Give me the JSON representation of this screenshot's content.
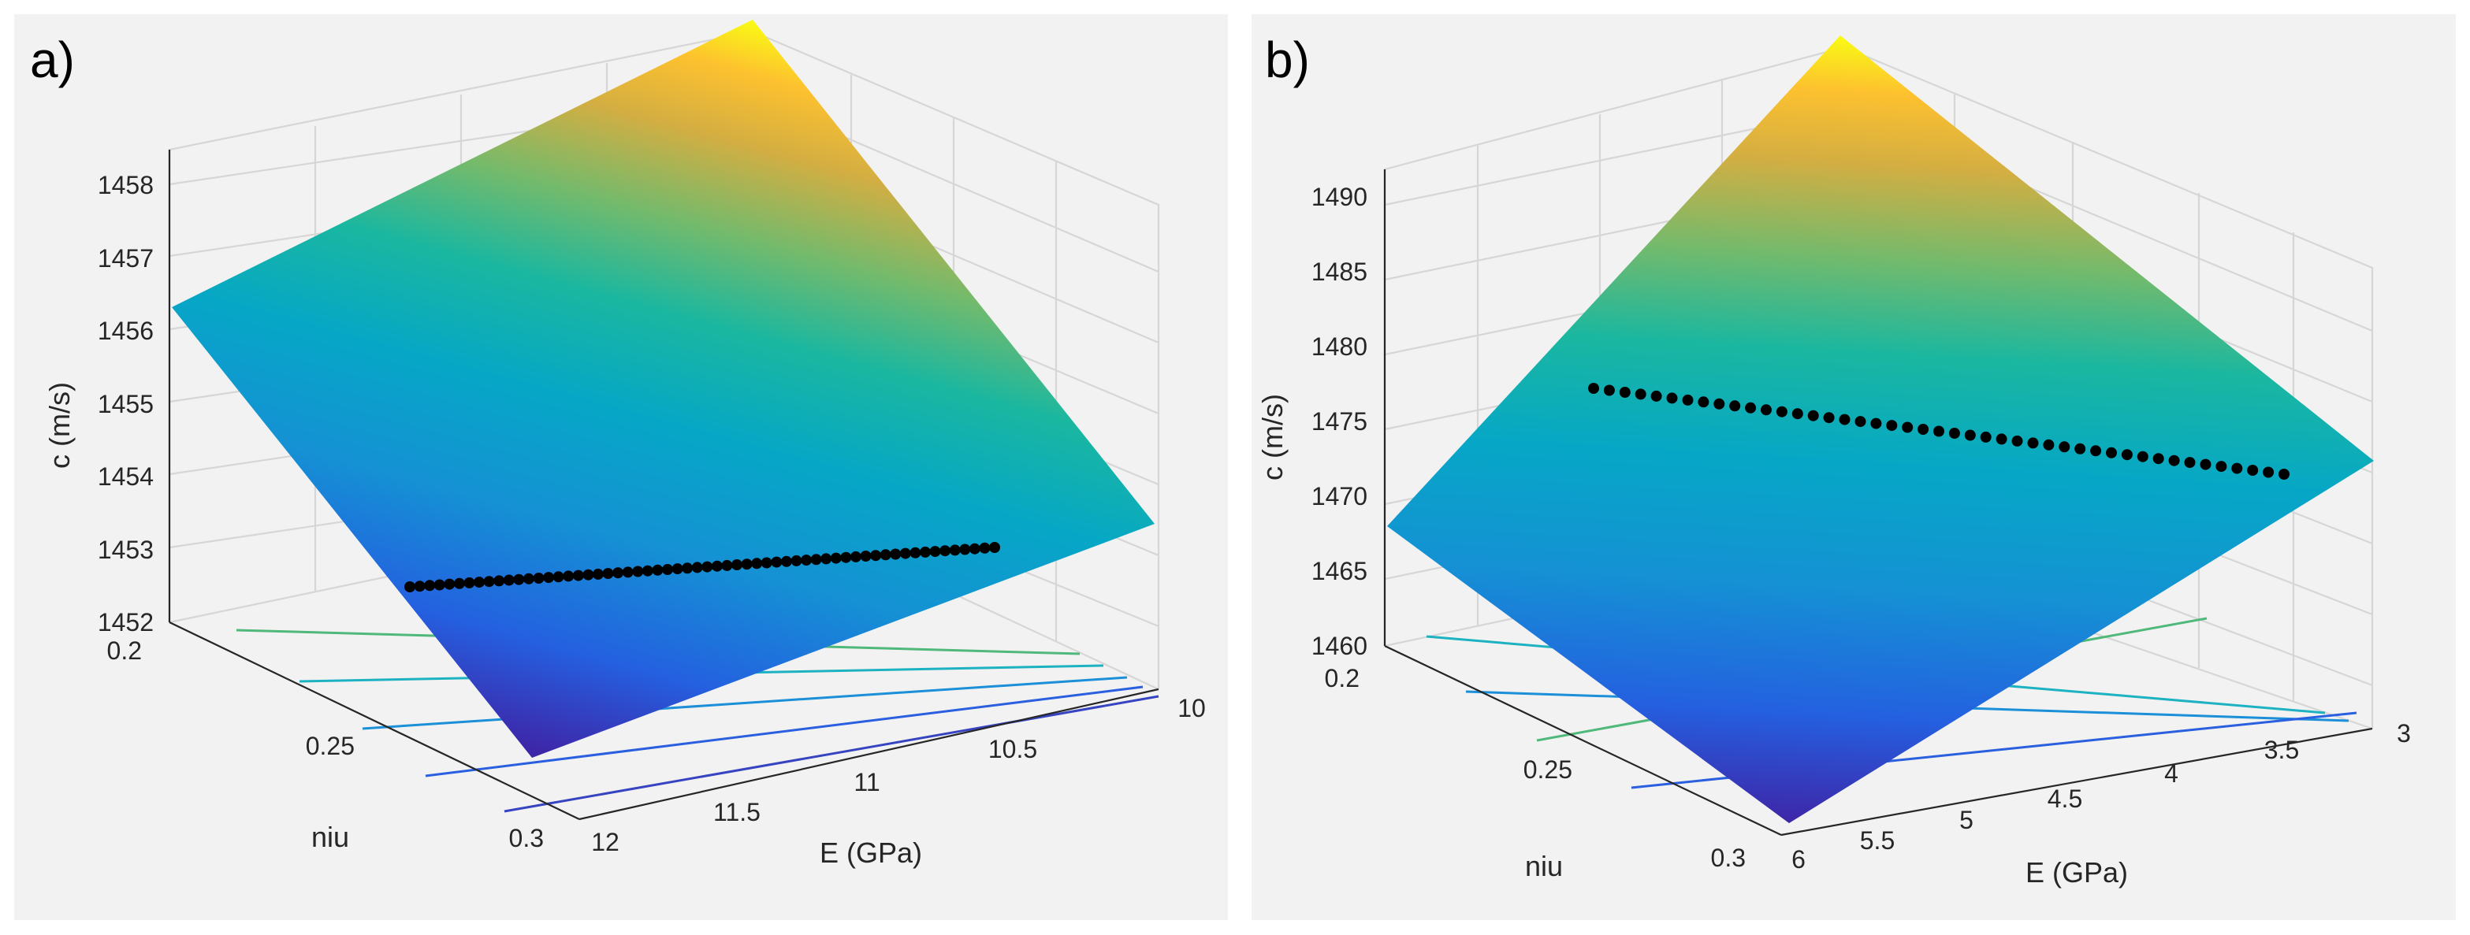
{
  "chart_data": [
    {
      "type": "surface",
      "panel_label": "a)",
      "zlabel": "c (m/s)",
      "xlabel": "E (GPa)",
      "ylabel": "niu",
      "z_ticks": [
        "1452",
        "1453",
        "1454",
        "1455",
        "1456",
        "1457",
        "1458"
      ],
      "x_ticks": [
        "12",
        "11.5",
        "11",
        "10.5",
        "10"
      ],
      "y_ticks": [
        "0.2",
        "0.25",
        "0.3"
      ],
      "x_range": [
        10,
        12
      ],
      "y_range": [
        0.2,
        0.3
      ],
      "z_range": [
        1452,
        1458
      ],
      "surface_corners": {
        "E10_niu0.2": 1458.7,
        "E12_niu0.2": 1456.2,
        "E10_niu0.3": 1453.4,
        "E12_niu0.3": 1451.6
      },
      "highlight_line": {
        "color": "#000000",
        "points": 60,
        "from": {
          "E": 12,
          "niu": 0.255,
          "c": 1452.4
        },
        "to": {
          "E": 10,
          "niu": 0.27,
          "c": 1452.6
        }
      },
      "contour_levels": 5,
      "colormap": "parula",
      "grid": true
    },
    {
      "type": "surface",
      "panel_label": "b)",
      "zlabel": "c (m/s)",
      "xlabel": "E (GPa)",
      "ylabel": "niu",
      "z_ticks": [
        "1460",
        "1465",
        "1470",
        "1475",
        "1480",
        "1485",
        "1490"
      ],
      "x_ticks": [
        "6",
        "5.5",
        "5",
        "4.5",
        "4",
        "3.5",
        "3"
      ],
      "y_ticks": [
        "0.2",
        "0.25",
        "0.3"
      ],
      "x_range": [
        3,
        6
      ],
      "y_range": [
        0.2,
        0.3
      ],
      "z_range": [
        1460,
        1490
      ],
      "surface_corners": {
        "E3_niu0.2": 1493,
        "E6_niu0.2": 1468,
        "E3_niu0.3": 1472,
        "E6_niu0.3": 1459
      },
      "highlight_line": {
        "color": "#000000",
        "points": 45,
        "from": {
          "E": 6,
          "niu": 0.22,
          "c": 1477.5
        },
        "to": {
          "E": 3,
          "niu": 0.285,
          "c": 1472.5
        }
      },
      "contour_levels": 4,
      "colormap": "parula",
      "grid": true
    }
  ]
}
